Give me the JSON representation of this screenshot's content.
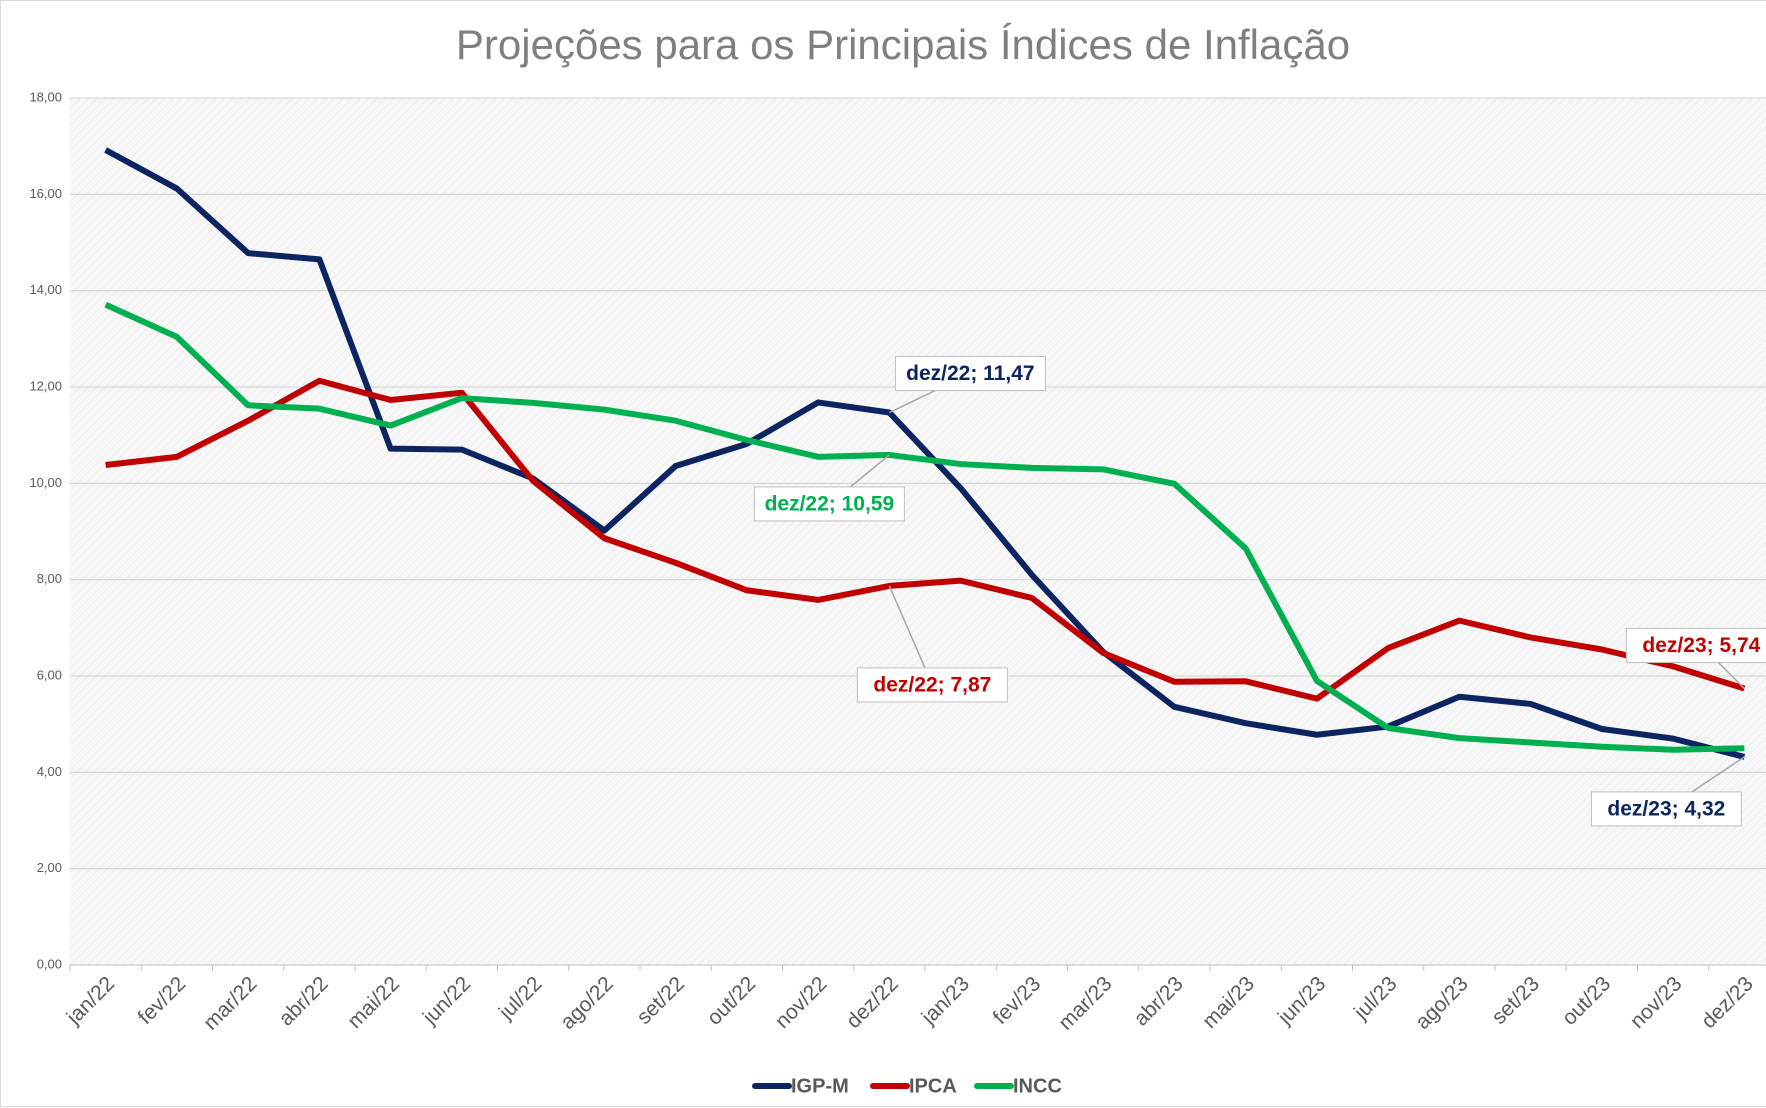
{
  "chart_data": {
    "type": "line",
    "title": "Projeções para os Principais Índices de Inflação",
    "categories": [
      "jan/22",
      "fev/22",
      "mar/22",
      "abr/22",
      "mai/22",
      "jun/22",
      "jul/22",
      "ago/22",
      "set/22",
      "out/22",
      "nov/22",
      "dez/22",
      "jan/23",
      "fev/23",
      "mar/23",
      "abr/23",
      "mai/23",
      "jun/23",
      "jul/23",
      "ago/23",
      "set/23",
      "out/23",
      "nov/23",
      "dez/23"
    ],
    "series": [
      {
        "name": "IGP-M",
        "color": "#0c2561",
        "values": [
          16.92,
          16.12,
          14.78,
          14.65,
          10.72,
          10.7,
          10.1,
          9.02,
          10.36,
          10.82,
          11.68,
          11.47,
          9.9,
          8.1,
          6.5,
          5.36,
          5.02,
          4.78,
          4.95,
          5.57,
          5.42,
          4.9,
          4.7,
          4.32
        ],
        "value_labels": [
          null,
          null,
          null,
          null,
          null,
          null,
          null,
          null,
          null,
          null,
          null,
          "dez/22; 11,47",
          null,
          null,
          null,
          null,
          null,
          null,
          null,
          null,
          null,
          null,
          null,
          "dez/23; 4,32"
        ]
      },
      {
        "name": "IPCA",
        "color": "#c00000",
        "values": [
          10.38,
          10.55,
          11.3,
          12.13,
          11.73,
          11.88,
          10.05,
          8.86,
          8.35,
          7.78,
          7.58,
          7.87,
          7.98,
          7.62,
          6.48,
          5.88,
          5.89,
          5.53,
          6.58,
          7.15,
          6.8,
          6.55,
          6.2,
          5.74
        ],
        "value_labels": [
          null,
          null,
          null,
          null,
          null,
          null,
          null,
          null,
          null,
          null,
          null,
          "dez/22; 7,87",
          null,
          null,
          null,
          null,
          null,
          null,
          null,
          null,
          null,
          null,
          null,
          "dez/23; 5,74"
        ]
      },
      {
        "name": "INCC",
        "color": "#00b050",
        "values": [
          13.71,
          13.04,
          11.62,
          11.55,
          11.2,
          11.77,
          11.67,
          11.53,
          11.3,
          10.9,
          10.55,
          10.59,
          10.4,
          10.32,
          10.29,
          9.99,
          8.65,
          5.9,
          4.92,
          4.71,
          4.62,
          4.53,
          4.47,
          4.5
        ],
        "value_labels": [
          null,
          null,
          null,
          null,
          null,
          null,
          null,
          null,
          null,
          null,
          null,
          "dez/22; 10,59",
          null,
          null,
          null,
          null,
          null,
          null,
          null,
          null,
          null,
          null,
          null,
          null
        ]
      }
    ],
    "ylim": [
      0,
      18
    ],
    "yticks": [
      {
        "value": 0,
        "label": "0,00"
      },
      {
        "value": 2,
        "label": "2,00"
      },
      {
        "value": 4,
        "label": "4,00"
      },
      {
        "value": 6,
        "label": "6,00"
      },
      {
        "value": 8,
        "label": "8,00"
      },
      {
        "value": 10,
        "label": "10,00"
      },
      {
        "value": 12,
        "label": "12,00"
      },
      {
        "value": 14,
        "label": "14,00"
      },
      {
        "value": 16,
        "label": "16,00"
      },
      {
        "value": 18,
        "label": "18,00"
      }
    ],
    "grid": true,
    "legend": "bottom"
  }
}
